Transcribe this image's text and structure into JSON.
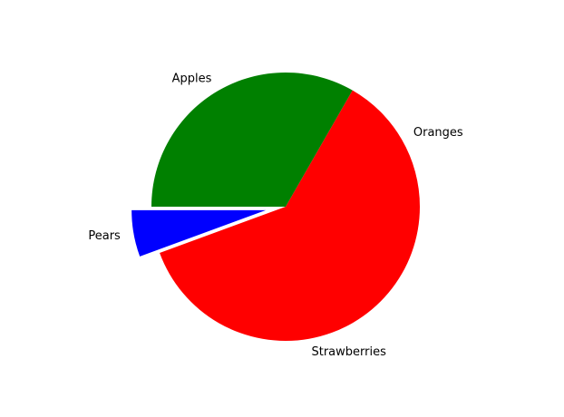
{
  "chart_data": {
    "type": "pie",
    "labels": [
      "Oranges",
      "Apples",
      "Pears",
      "Strawberries"
    ],
    "values": [
      16.7,
      33.3,
      5.6,
      44.4
    ],
    "colors": [
      "#ff0000",
      "#008000",
      "#0000ff",
      "#ff0000"
    ],
    "explode": [
      0,
      0,
      0.15,
      0
    ],
    "start_angle_deg": 0,
    "direction": "counterclockwise",
    "title": "",
    "legend": "none"
  }
}
